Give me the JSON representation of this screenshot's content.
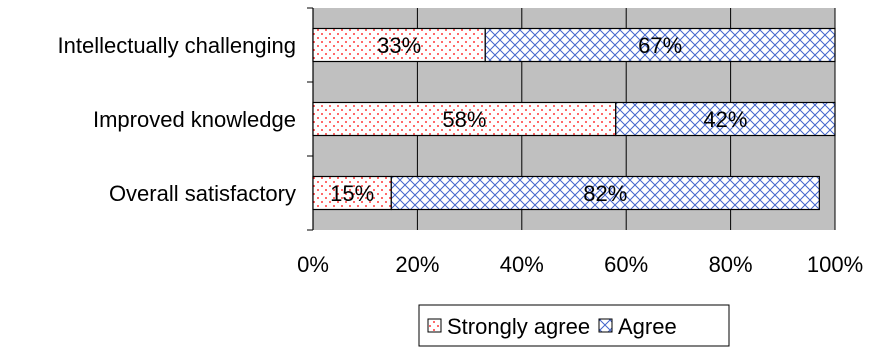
{
  "chart_data": {
    "type": "bar",
    "orientation": "horizontal",
    "stacked": true,
    "categories": [
      "Intellectually challenging",
      "Improved knowledge",
      "Overall satisfactory"
    ],
    "series": [
      {
        "name": "Strongly agree",
        "values": [
          33,
          58,
          15
        ],
        "labels": [
          "33%",
          "58%",
          "15%"
        ],
        "color": "#ff0000",
        "pattern": "dots"
      },
      {
        "name": "Agree",
        "values": [
          67,
          42,
          82
        ],
        "labels": [
          "67%",
          "42%",
          "82%"
        ],
        "color": "#4466cc",
        "pattern": "crosshatch"
      }
    ],
    "xlim": [
      0,
      100
    ],
    "xticks": [
      0,
      20,
      40,
      60,
      80,
      100
    ],
    "xtick_labels": [
      "0%",
      "20%",
      "40%",
      "60%",
      "80%",
      "100%"
    ],
    "grid": true,
    "plot_background": "#c0c0c0",
    "legend": {
      "position": "bottom",
      "entries": [
        "Strongly agree",
        "Agree"
      ]
    }
  }
}
